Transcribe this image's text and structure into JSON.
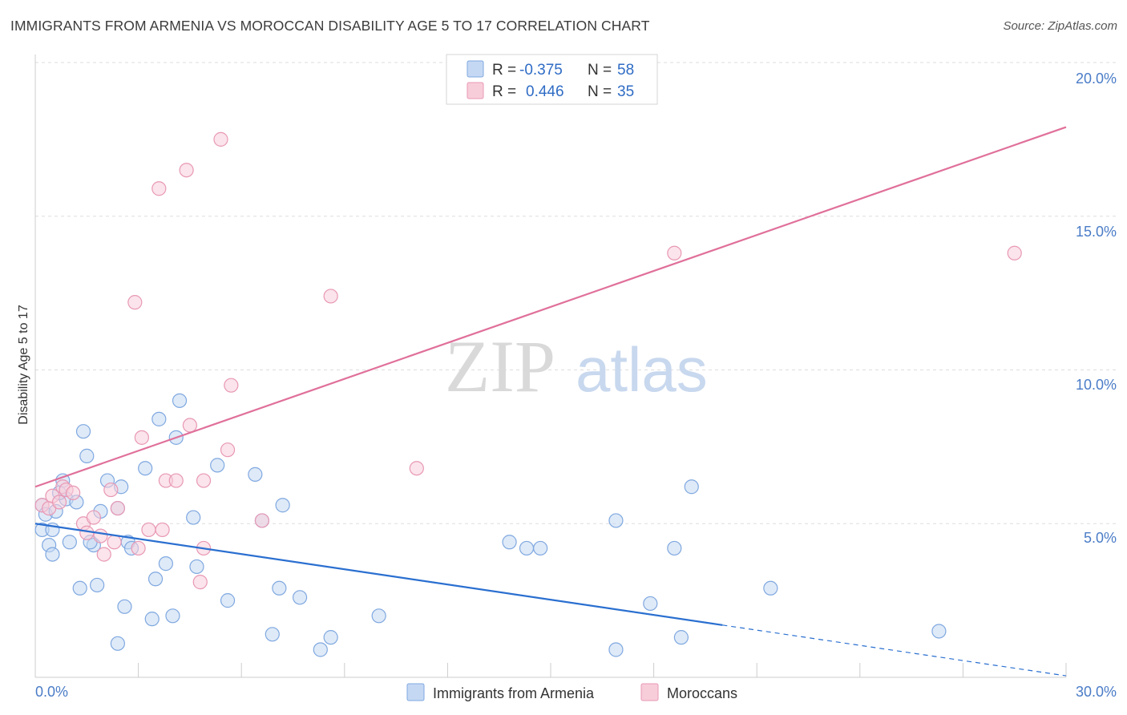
{
  "title": "IMMIGRANTS FROM ARMENIA VS MOROCCAN DISABILITY AGE 5 TO 17 CORRELATION CHART",
  "source": "Source: ZipAtlas.com",
  "watermark": {
    "part1": "ZIP",
    "part2": "atlas"
  },
  "legend_top": {
    "rows": [
      {
        "r_label": "R =",
        "r_value": "-0.375",
        "n_label": "N =",
        "n_value": "58"
      },
      {
        "r_label": "R =",
        "r_value": " 0.446",
        "n_label": "N =",
        "n_value": "35"
      }
    ]
  },
  "chart_data": {
    "type": "scatter",
    "title": "IMMIGRANTS FROM ARMENIA VS MOROCCAN DISABILITY AGE 5 TO 17 CORRELATION CHART",
    "xlabel": "",
    "ylabel": "Disability Age 5 to 17",
    "xlim": [
      0,
      30
    ],
    "ylim": [
      0,
      20
    ],
    "x_tick_labels": [
      "0.0%",
      "30.0%"
    ],
    "y_tick_labels": [
      "5.0%",
      "10.0%",
      "15.0%",
      "20.0%"
    ],
    "y_ticks": [
      5,
      10,
      15,
      20
    ],
    "grid": true,
    "legend_position": "bottom",
    "series": [
      {
        "name": "Immigrants from Armenia",
        "color": "#7fa8e0",
        "fill": "#c5d8f3",
        "line_color": "#2a6fd0",
        "trend": {
          "x0": 0,
          "y0": 5.0,
          "x1": 20,
          "y1": 1.7,
          "dash_to_x": 30,
          "dash_to_y": 0.05
        },
        "points": [
          [
            0.2,
            5.6
          ],
          [
            0.2,
            4.8
          ],
          [
            0.3,
            5.3
          ],
          [
            0.4,
            4.3
          ],
          [
            0.5,
            4.8
          ],
          [
            0.5,
            4.0
          ],
          [
            0.6,
            5.4
          ],
          [
            0.8,
            6.4
          ],
          [
            0.9,
            5.8
          ],
          [
            1.0,
            4.4
          ],
          [
            1.2,
            5.7
          ],
          [
            1.4,
            8.0
          ],
          [
            1.5,
            7.2
          ],
          [
            1.7,
            4.3
          ],
          [
            1.8,
            3.0
          ],
          [
            1.9,
            5.4
          ],
          [
            2.1,
            6.4
          ],
          [
            2.4,
            5.5
          ],
          [
            2.5,
            6.2
          ],
          [
            2.7,
            4.4
          ],
          [
            2.8,
            4.2
          ],
          [
            3.2,
            6.8
          ],
          [
            3.4,
            1.9
          ],
          [
            3.5,
            3.2
          ],
          [
            3.6,
            8.4
          ],
          [
            3.8,
            3.7
          ],
          [
            4.0,
            2.0
          ],
          [
            4.1,
            7.8
          ],
          [
            4.2,
            9.0
          ],
          [
            4.6,
            5.2
          ],
          [
            4.7,
            3.6
          ],
          [
            5.3,
            6.9
          ],
          [
            5.6,
            2.5
          ],
          [
            6.4,
            6.6
          ],
          [
            6.6,
            5.1
          ],
          [
            6.9,
            1.4
          ],
          [
            7.1,
            2.9
          ],
          [
            7.2,
            5.6
          ],
          [
            7.7,
            2.6
          ],
          [
            8.3,
            0.9
          ],
          [
            8.6,
            1.3
          ],
          [
            10.0,
            2.0
          ],
          [
            13.8,
            4.4
          ],
          [
            14.3,
            4.2
          ],
          [
            14.7,
            4.2
          ],
          [
            16.9,
            0.9
          ],
          [
            16.9,
            5.1
          ],
          [
            17.9,
            2.4
          ],
          [
            18.6,
            4.2
          ],
          [
            18.8,
            1.3
          ],
          [
            19.1,
            6.2
          ],
          [
            21.4,
            2.9
          ],
          [
            26.3,
            1.5
          ],
          [
            2.6,
            2.3
          ],
          [
            1.3,
            2.9
          ],
          [
            2.4,
            1.1
          ],
          [
            1.6,
            4.4
          ],
          [
            0.7,
            6.0
          ]
        ]
      },
      {
        "name": "Moroccans",
        "color": "#e898b4",
        "fill": "#f8cdda",
        "line_color": "#e0709a",
        "trend": {
          "x0": 0,
          "y0": 6.2,
          "x1": 30,
          "y1": 17.9
        },
        "points": [
          [
            0.2,
            5.6
          ],
          [
            0.4,
            5.5
          ],
          [
            0.5,
            5.9
          ],
          [
            0.7,
            5.7
          ],
          [
            0.8,
            6.2
          ],
          [
            0.9,
            6.1
          ],
          [
            1.1,
            6.0
          ],
          [
            1.4,
            5.0
          ],
          [
            1.5,
            4.7
          ],
          [
            1.7,
            5.2
          ],
          [
            1.9,
            4.6
          ],
          [
            2.0,
            4.0
          ],
          [
            2.2,
            6.1
          ],
          [
            2.3,
            4.4
          ],
          [
            2.4,
            5.5
          ],
          [
            2.9,
            12.2
          ],
          [
            3.0,
            4.2
          ],
          [
            3.1,
            7.8
          ],
          [
            3.3,
            4.8
          ],
          [
            3.6,
            15.9
          ],
          [
            3.7,
            4.8
          ],
          [
            3.8,
            6.4
          ],
          [
            4.1,
            6.4
          ],
          [
            4.4,
            16.5
          ],
          [
            4.5,
            8.2
          ],
          [
            4.8,
            3.1
          ],
          [
            4.9,
            4.2
          ],
          [
            4.9,
            6.4
          ],
          [
            5.4,
            17.5
          ],
          [
            5.6,
            7.4
          ],
          [
            5.7,
            9.5
          ],
          [
            6.6,
            5.1
          ],
          [
            8.6,
            12.4
          ],
          [
            11.1,
            6.8
          ],
          [
            18.6,
            13.8
          ]
        ],
        "extra_points": [
          [
            28.5,
            13.8
          ]
        ]
      }
    ]
  }
}
